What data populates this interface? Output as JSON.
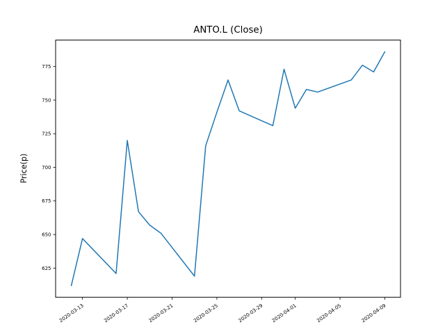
{
  "figure": {
    "background": "#ffffff",
    "frame_color": "#000000"
  },
  "chart_data": {
    "type": "line",
    "title": "ANTO.L (Close)",
    "xlabel": "",
    "ylabel": "Price(p)",
    "series": [
      {
        "name": "Close",
        "color": "#1f77b4",
        "x": [
          "2020-03-12",
          "2020-03-13",
          "2020-03-16",
          "2020-03-17",
          "2020-03-18",
          "2020-03-19",
          "2020-03-20",
          "2020-03-23",
          "2020-03-24",
          "2020-03-25",
          "2020-03-26",
          "2020-03-27",
          "2020-03-30",
          "2020-03-31",
          "2020-04-01",
          "2020-04-02",
          "2020-04-03",
          "2020-04-06",
          "2020-04-07",
          "2020-04-08",
          "2020-04-09"
        ],
        "values": [
          612,
          647,
          621,
          720,
          667,
          657,
          651,
          619,
          716,
          741,
          765,
          742,
          731,
          773,
          744,
          758,
          756,
          765,
          776,
          771,
          786
        ]
      }
    ],
    "ylim": [
      603.3,
      794.7
    ],
    "yticks": [
      625,
      650,
      675,
      700,
      725,
      750,
      775
    ],
    "xticks": [
      "2020-03-13",
      "2020-03-17",
      "2020-03-21",
      "2020-03-25",
      "2020-03-29",
      "2020-04-01",
      "2020-04-05",
      "2020-04-09"
    ],
    "xtick_rotation_deg": 35,
    "x_margin_fraction": 0.05,
    "grid": false,
    "legend": "none",
    "line_width": 1.5
  }
}
